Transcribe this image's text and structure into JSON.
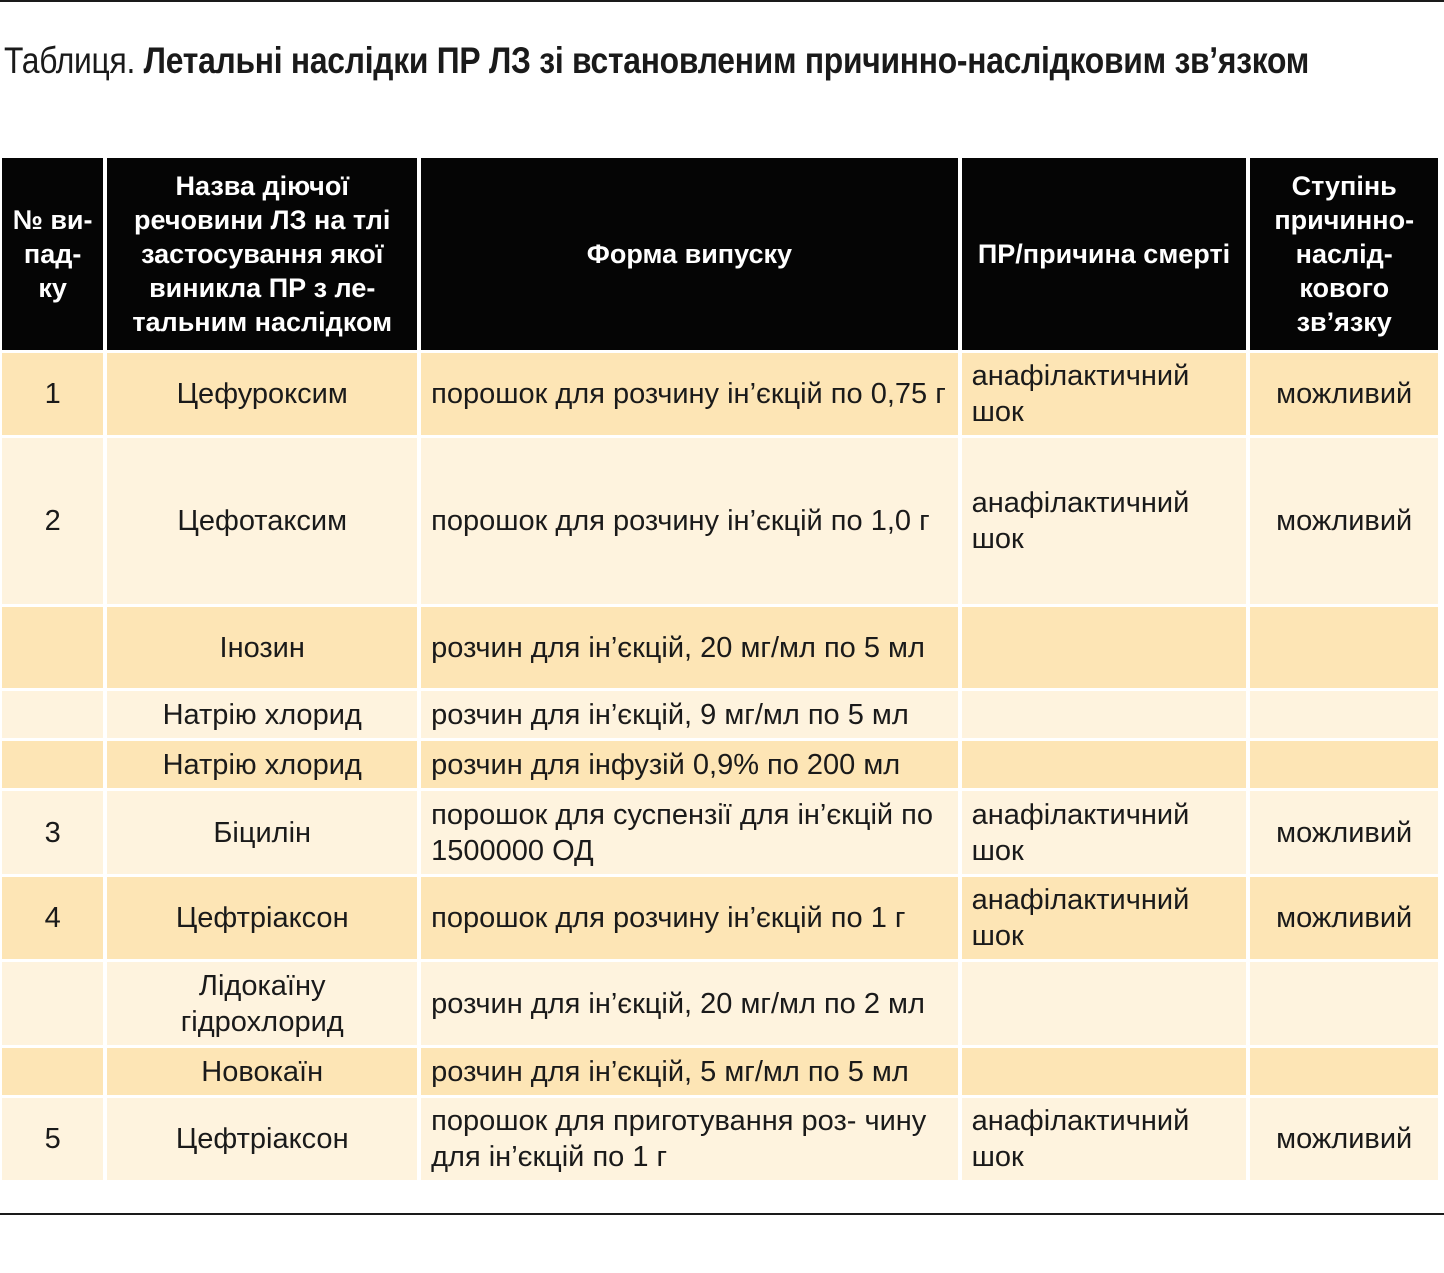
{
  "title": {
    "prefix": "Таблиця.",
    "main": "Летальні наслідки ПР ЛЗ зі встановленим причинно-наслідковим зв’язком"
  },
  "table": {
    "headers": {
      "num": "№ ви- пад- ку",
      "substance": "Назва діючої речовини ЛЗ на тлі застосування якої виникла ПР з ле- тальним наслідком",
      "form": "Форма випуску",
      "reason": "ПР/причина смерті",
      "degree": "Ступінь причинно- наслід- кового зв’язку"
    },
    "rows": [
      {
        "num": "1",
        "substance": "Цефуроксим",
        "form": "порошок для розчину ін’єкцій по 0,75 г",
        "reason": "анафілактичний шок",
        "degree": "можливий"
      },
      {
        "num": "2",
        "substance": "Цефотаксим",
        "form": "порошок для розчину ін’єкцій по 1,0 г",
        "reason": "анафілактичний шок",
        "degree": "можливий"
      },
      {
        "num": "",
        "substance": "Інозин",
        "form": "розчин для ін’єкцій, 20 мг/мл по 5 мл",
        "reason": "",
        "degree": ""
      },
      {
        "num": "",
        "substance": "Натрію хлорид",
        "form": "розчин для ін’єкцій, 9 мг/мл по 5 мл",
        "reason": "",
        "degree": ""
      },
      {
        "num": "",
        "substance": "Натрію хлорид",
        "form": "розчин для інфузій 0,9% по 200 мл",
        "reason": "",
        "degree": ""
      },
      {
        "num": "3",
        "substance": "Біцилін",
        "form": "порошок для суспензії для ін’єкцій по 1500000 ОД",
        "reason": "анафілактичний шок",
        "degree": "можливий"
      },
      {
        "num": "4",
        "substance": "Цефтріаксон",
        "form": "порошок для розчину ін’єкцій по 1 г",
        "reason": "анафілактичний шок",
        "degree": "можливий"
      },
      {
        "num": "",
        "substance": "Лідокаїну гідрохлорид",
        "form": "розчин для ін’єкцій, 20 мг/мл по 2 мл",
        "reason": "",
        "degree": ""
      },
      {
        "num": "",
        "substance": "Новокаїн",
        "form": "розчин для ін’єкцій, 5 мг/мл по 5 мл",
        "reason": "",
        "degree": ""
      },
      {
        "num": "5",
        "substance": "Цефтріаксон",
        "form": "порошок для приготування роз- чину для ін’єкцій по 1 г",
        "reason": "анафілактичний шок",
        "degree": "можливий"
      }
    ]
  }
}
